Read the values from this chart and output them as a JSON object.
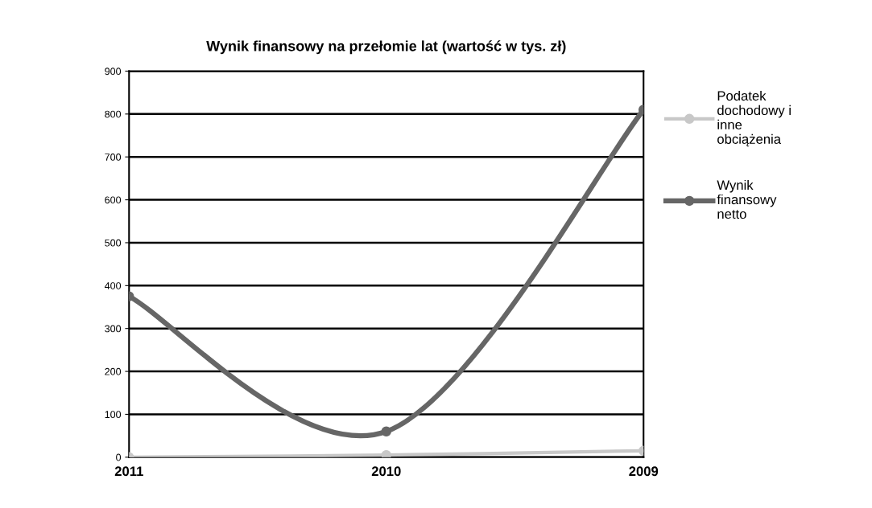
{
  "chart_data": {
    "type": "line",
    "title": "Wynik finansowy na przełomie lat (wartość w tys. zł)",
    "categories": [
      "2011",
      "2010",
      "2009"
    ],
    "series": [
      {
        "name": "Podatek dochodowy i inne obciążenia",
        "color": "#c8c8c8",
        "values": [
          0,
          5,
          15
        ]
      },
      {
        "name": "Wynik finansowy netto",
        "color": "#666666",
        "values": [
          375,
          60,
          810
        ]
      }
    ],
    "ylim": [
      0,
      900
    ],
    "yticks": [
      0,
      100,
      200,
      300,
      400,
      500,
      600,
      700,
      800,
      900
    ],
    "grid": "y",
    "legend": "right",
    "marker": "circle",
    "line_style": "solid"
  }
}
